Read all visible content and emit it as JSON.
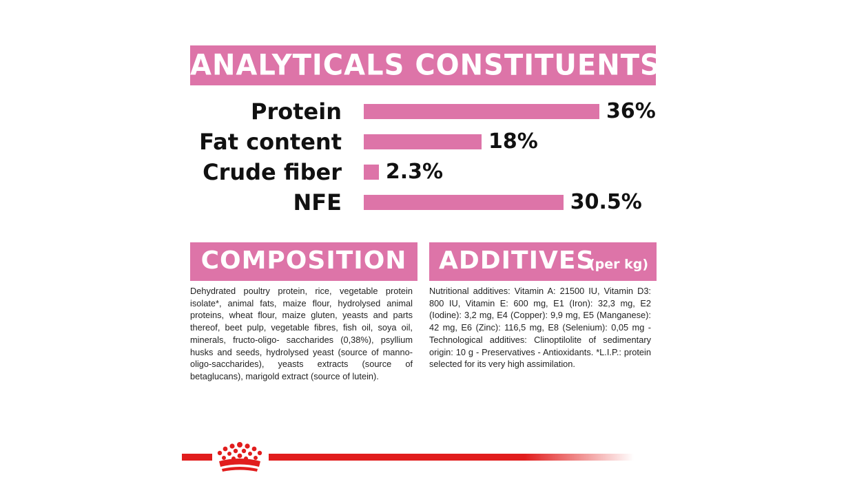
{
  "analytics": {
    "title": "ANALYTICALS CONSTITUENTS",
    "rows": [
      {
        "label": "Protein",
        "value": "36%",
        "percent": 36
      },
      {
        "label": "Fat content",
        "value": "18%",
        "percent": 18
      },
      {
        "label": "Crude fiber",
        "value": "2.3%",
        "percent": 2.3
      },
      {
        "label": "NFE",
        "value": "30.5%",
        "percent": 30.5
      }
    ]
  },
  "composition": {
    "title": "COMPOSITION",
    "text": "Dehydrated poultry protein, rice, vegetable protein isolate*, animal fats, maize flour, hydrolysed animal proteins, wheat flour, maize gluten, yeasts and parts thereof, beet pulp, vegetable fibres, fish oil, soya oil, minerals, fructo-oligo- saccharides (0,38%), psyllium husks and seeds, hydrolysed yeast (source of manno-oligo-saccharides), yeasts extracts (source of betaglucans), marigold extract (source of lutein)."
  },
  "additives": {
    "title": "ADDITIVES",
    "subtitle": "(per kg)",
    "text": "Nutritional additives: Vitamin A: 21500 IU, Vitamin D3: 800 IU, Vitamin E: 600 mg, E1 (Iron): 32,3 mg, E2 (Iodine): 3,2 mg, E4 (Copper): 9,9 mg, E5 (Manganese): 42 mg, E6 (Zinc): 116,5 mg, E8 (Selenium): 0,05 mg - Technological additives: Clinoptilolite of sedimentary origin: 10 g - Preservatives - Antioxidants. *L.I.P.: protein selected for its very high assimilation."
  },
  "footer": {
    "logo_icon": "crown-icon",
    "accent_color": "#e11d1d"
  },
  "colors": {
    "pink": "#dd74a8",
    "red": "#e11d1d"
  }
}
